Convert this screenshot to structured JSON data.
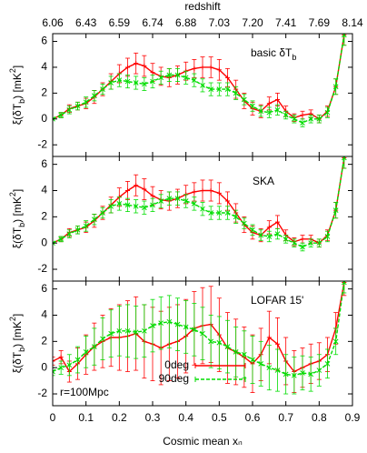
{
  "chart_data": [
    {
      "type": "line",
      "x2label": "redshift",
      "x2ticks": [
        {
          "value": 0,
          "label": "6.06"
        },
        {
          "value": 0.1,
          "label": "6.43"
        },
        {
          "value": 0.2,
          "label": "6.59"
        },
        {
          "value": 0.3,
          "label": "6.74"
        },
        {
          "value": 0.4,
          "label": "6.88"
        },
        {
          "value": 0.5,
          "label": "7.03"
        },
        {
          "value": 0.6,
          "label": "7.20"
        },
        {
          "value": 0.7,
          "label": "7.41"
        },
        {
          "value": 0.8,
          "label": "7.69"
        },
        {
          "value": 0.9,
          "label": "8.14"
        }
      ],
      "label": [
        "basic δT",
        "b"
      ],
      "ylabel": [
        "ξ(δT",
        "b",
        ") [mK",
        "2",
        "]"
      ],
      "xlim": [
        0,
        0.9
      ],
      "ylim": [
        -2.9,
        6.6
      ],
      "yticks": [
        -2,
        0,
        2,
        4,
        6
      ],
      "x": [
        0,
        0.025,
        0.05,
        0.075,
        0.1,
        0.125,
        0.15,
        0.175,
        0.2,
        0.225,
        0.25,
        0.275,
        0.3,
        0.325,
        0.35,
        0.375,
        0.4,
        0.425,
        0.45,
        0.475,
        0.5,
        0.525,
        0.55,
        0.575,
        0.6,
        0.625,
        0.65,
        0.675,
        0.7,
        0.725,
        0.75,
        0.775,
        0.8,
        0.825,
        0.85,
        0.875
      ],
      "series": [
        {
          "color": "#ff0000",
          "marker": "plus",
          "dashed": false,
          "values": [
            0,
            0.3,
            0.8,
            1.0,
            1.2,
            1.7,
            2.3,
            2.9,
            3.5,
            4.0,
            4.3,
            4.1,
            3.6,
            3.3,
            3.2,
            3.4,
            3.7,
            3.9,
            4.0,
            4.0,
            3.8,
            3.2,
            2.3,
            1.4,
            0.8,
            0.6,
            1.2,
            1.5,
            0.6,
            0.1,
            0.3,
            0.4,
            0.0,
            0.6,
            2.5,
            6.5
          ],
          "errors": [
            0,
            0.2,
            0.3,
            0.3,
            0.4,
            0.5,
            0.5,
            0.6,
            0.7,
            0.7,
            0.8,
            0.8,
            0.7,
            0.7,
            0.7,
            0.7,
            0.7,
            0.7,
            0.8,
            0.8,
            0.8,
            0.7,
            0.7,
            0.6,
            0.5,
            0.5,
            0.5,
            0.5,
            0.4,
            0.3,
            0.3,
            0.3,
            0.3,
            0.4,
            0.6,
            0.8
          ]
        },
        {
          "color": "#00dd00",
          "marker": "cross",
          "dashed": true,
          "values": [
            0,
            0.3,
            0.7,
            1.0,
            1.3,
            1.8,
            2.3,
            2.8,
            3.0,
            2.9,
            2.8,
            2.7,
            2.9,
            3.2,
            3.4,
            3.4,
            3.2,
            3.0,
            2.6,
            2.3,
            2.3,
            2.3,
            2.0,
            1.5,
            1.0,
            0.6,
            0.5,
            0.7,
            0.3,
            0.0,
            -0.3,
            0.0,
            0.0,
            0.5,
            2.5,
            6.5
          ],
          "errors": [
            0,
            0.2,
            0.3,
            0.3,
            0.4,
            0.4,
            0.4,
            0.5,
            0.5,
            0.5,
            0.5,
            0.5,
            0.5,
            0.5,
            0.5,
            0.5,
            0.5,
            0.5,
            0.5,
            0.5,
            0.5,
            0.5,
            0.5,
            0.4,
            0.4,
            0.4,
            0.4,
            0.4,
            0.3,
            0.3,
            0.3,
            0.3,
            0.3,
            0.4,
            0.6,
            0.8
          ]
        }
      ]
    },
    {
      "type": "line",
      "label": "SKA",
      "ylabel": [
        "ξ(δT",
        "b",
        ") [mK",
        "2",
        "]"
      ],
      "xlim": [
        0,
        0.9
      ],
      "ylim": [
        -2.9,
        6.6
      ],
      "yticks": [
        -2,
        0,
        2,
        4,
        6
      ],
      "x": [
        0,
        0.025,
        0.05,
        0.075,
        0.1,
        0.125,
        0.15,
        0.175,
        0.2,
        0.225,
        0.25,
        0.275,
        0.3,
        0.325,
        0.35,
        0.375,
        0.4,
        0.425,
        0.45,
        0.475,
        0.5,
        0.525,
        0.55,
        0.575,
        0.6,
        0.625,
        0.65,
        0.675,
        0.7,
        0.725,
        0.75,
        0.775,
        0.8,
        0.825,
        0.85,
        0.875
      ],
      "series": [
        {
          "color": "#ff0000",
          "marker": "plus",
          "dashed": false,
          "values": [
            0,
            0.3,
            0.8,
            1.0,
            1.2,
            1.7,
            2.3,
            2.9,
            3.5,
            4.0,
            4.4,
            4.1,
            3.6,
            3.3,
            3.2,
            3.4,
            3.7,
            3.9,
            4.0,
            4.0,
            3.8,
            3.2,
            2.3,
            1.4,
            0.8,
            0.6,
            1.2,
            1.6,
            0.6,
            0.1,
            0.3,
            0.3,
            0.0,
            0.6,
            2.5,
            6.5
          ],
          "errors": [
            0,
            0.2,
            0.3,
            0.3,
            0.4,
            0.5,
            0.5,
            0.6,
            0.7,
            0.7,
            0.8,
            0.8,
            0.7,
            0.7,
            0.7,
            0.7,
            0.7,
            0.7,
            0.8,
            0.8,
            0.8,
            0.7,
            0.7,
            0.6,
            0.5,
            0.5,
            0.5,
            0.5,
            0.4,
            0.3,
            0.3,
            0.3,
            0.3,
            0.4,
            0.6,
            0.8
          ]
        },
        {
          "color": "#00dd00",
          "marker": "cross",
          "dashed": true,
          "values": [
            0,
            0.3,
            0.7,
            1.0,
            1.3,
            1.8,
            2.3,
            2.8,
            3.0,
            2.9,
            2.8,
            2.7,
            2.9,
            3.2,
            3.4,
            3.4,
            3.2,
            3.0,
            2.6,
            2.3,
            2.3,
            2.3,
            2.0,
            1.5,
            1.0,
            0.6,
            0.5,
            0.7,
            0.3,
            0.0,
            -0.3,
            0.0,
            0.0,
            0.5,
            2.5,
            6.5
          ],
          "errors": [
            0,
            0.2,
            0.3,
            0.3,
            0.4,
            0.4,
            0.4,
            0.5,
            0.5,
            0.5,
            0.5,
            0.5,
            0.5,
            0.5,
            0.5,
            0.5,
            0.5,
            0.5,
            0.5,
            0.5,
            0.5,
            0.5,
            0.5,
            0.4,
            0.4,
            0.4,
            0.4,
            0.4,
            0.3,
            0.3,
            0.3,
            0.3,
            0.3,
            0.4,
            0.6,
            0.8
          ]
        }
      ]
    },
    {
      "type": "line",
      "label": "LOFAR 15'",
      "note": "r=100Mpc",
      "ylabel": [
        "ξ(δT",
        "b",
        ") [mK",
        "2",
        "]"
      ],
      "xlabel": "Cosmic mean xₙ",
      "xlim": [
        0,
        0.9
      ],
      "ylim": [
        -2.9,
        6.6
      ],
      "yticks": [
        -2,
        0,
        2,
        4,
        6
      ],
      "xticks": [
        0,
        0.1,
        0.2,
        0.3,
        0.4,
        0.5,
        0.6,
        0.7,
        0.8,
        0.9
      ],
      "x": [
        0,
        0.025,
        0.05,
        0.075,
        0.1,
        0.125,
        0.15,
        0.175,
        0.2,
        0.225,
        0.25,
        0.275,
        0.3,
        0.325,
        0.35,
        0.375,
        0.4,
        0.425,
        0.45,
        0.475,
        0.5,
        0.525,
        0.55,
        0.575,
        0.6,
        0.625,
        0.65,
        0.675,
        0.7,
        0.725,
        0.75,
        0.775,
        0.8,
        0.825,
        0.85,
        0.875
      ],
      "series": [
        {
          "name": "0deg",
          "color": "#ff0000",
          "marker": "plus",
          "dashed": false,
          "values": [
            0.5,
            0.8,
            -0.3,
            0.3,
            1.0,
            1.6,
            2.0,
            2.3,
            2.3,
            2.4,
            2.6,
            2.0,
            1.8,
            1.5,
            1.8,
            2.0,
            2.4,
            3.0,
            3.2,
            3.3,
            2.5,
            1.5,
            1.2,
            0.8,
            0.3,
            1.0,
            2.3,
            1.8,
            0.5,
            -0.3,
            0,
            0.3,
            0.5,
            1,
            3,
            6.5
          ],
          "errors": [
            0.3,
            0.5,
            0.8,
            1.2,
            1.5,
            1.8,
            2.0,
            2.2,
            2.5,
            2.7,
            2.8,
            2.8,
            2.8,
            2.8,
            2.8,
            2.8,
            2.8,
            2.8,
            2.9,
            2.9,
            2.8,
            2.7,
            2.5,
            2.3,
            2.2,
            2.0,
            2.0,
            2.0,
            1.8,
            1.6,
            1.5,
            1.5,
            1.4,
            1.3,
            1.2,
            1.0
          ]
        },
        {
          "name": "90deg",
          "color": "#00dd00",
          "marker": "cross",
          "dashed": true,
          "values": [
            -0.3,
            0,
            0.2,
            0.6,
            1.2,
            1.6,
            2.2,
            2.6,
            2.8,
            2.8,
            2.7,
            2.8,
            3.2,
            3.4,
            3.5,
            3.3,
            3.1,
            2.9,
            2.6,
            2.0,
            1.9,
            1.6,
            1.2,
            1.0,
            0.6,
            0.3,
            0,
            -0.2,
            -0.5,
            -0.6,
            -0.4,
            -0.5,
            -0.2,
            0.3,
            2,
            6.5
          ],
          "errors": [
            0.3,
            0.5,
            0.8,
            1.0,
            1.2,
            1.4,
            1.6,
            1.8,
            1.9,
            2.0,
            2.0,
            2.0,
            2.0,
            2.0,
            2.0,
            2.0,
            2.0,
            2.0,
            2.0,
            2.0,
            2.0,
            2.0,
            1.9,
            1.8,
            1.8,
            1.7,
            1.7,
            1.6,
            1.5,
            1.4,
            1.3,
            1.3,
            1.2,
            1.1,
            1.0,
            0.8
          ]
        }
      ]
    }
  ]
}
